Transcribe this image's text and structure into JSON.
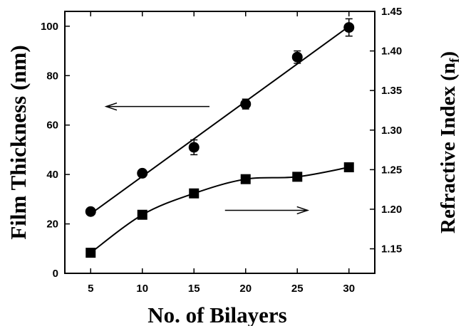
{
  "chart_data": {
    "type": "line",
    "x": [
      5,
      10,
      15,
      20,
      25,
      30
    ],
    "xlabel": "No. of Bilayers",
    "xlim": [
      2.5,
      32.5
    ],
    "xticks": [
      5,
      10,
      15,
      20,
      25,
      30
    ],
    "ylabel_left": "Film Thickness (nm)",
    "ylim_left": [
      0,
      106
    ],
    "yticks_left": [
      0,
      20,
      40,
      60,
      80,
      100
    ],
    "ylabel_right_main": "Refractive Index (n",
    "ylabel_right_sub": "f",
    "ylabel_right_close": ")",
    "ylim_right": [
      1.119,
      1.45
    ],
    "yticks_right": [
      "1.15",
      "1.20",
      "1.25",
      "1.30",
      "1.35",
      "1.40",
      "1.45"
    ],
    "grid": false,
    "series": [
      {
        "axis": "left",
        "marker": "circle",
        "fit": "linear",
        "values": [
          25,
          40.5,
          51,
          68.5,
          87.5,
          99.5
        ],
        "errors": [
          0,
          1,
          3,
          2,
          2.5,
          3.5
        ]
      },
      {
        "axis": "right",
        "marker": "square",
        "fit": "smooth",
        "values": [
          1.145,
          1.193,
          1.22,
          1.238,
          1.241,
          1.253
        ],
        "errors": [
          0,
          0,
          0,
          0,
          0,
          0
        ]
      }
    ],
    "annotations": [
      {
        "type": "arrow",
        "direction": "left",
        "points_to": "left-axis",
        "x": [
          16.5,
          6.5
        ],
        "y_left": 67.5
      },
      {
        "type": "arrow",
        "direction": "right",
        "points_to": "right-axis",
        "x": [
          18,
          26
        ],
        "y_left": 25.5
      }
    ]
  }
}
